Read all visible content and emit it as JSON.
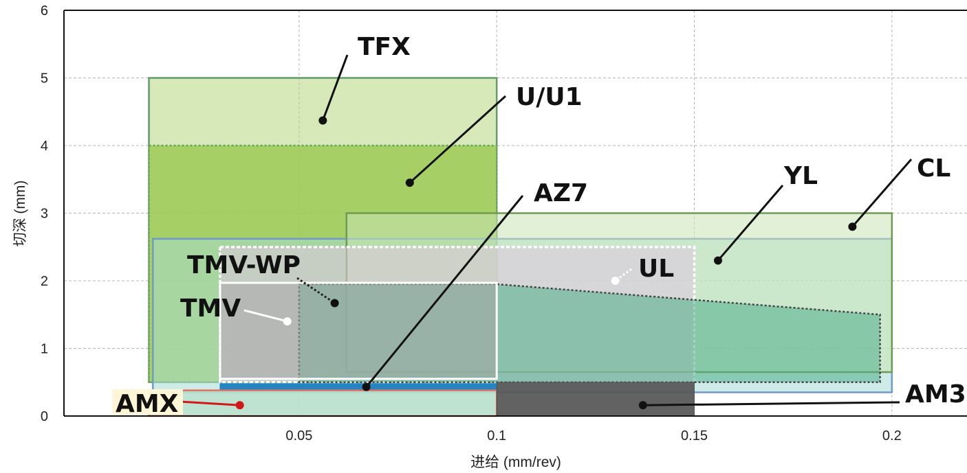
{
  "chart_data": {
    "type": "area",
    "xlabel": "进给 (mm/rev)",
    "ylabel": "切深 (mm)",
    "xlim": [
      -0.0095,
      0.219
    ],
    "ylim": [
      0,
      6
    ],
    "x_ticks": [
      {
        "value": 0.05,
        "label": "0.05"
      },
      {
        "value": 0.1,
        "label": "0.1"
      },
      {
        "value": 0.15,
        "label": "0.15"
      },
      {
        "value": 0.2,
        "label": "0.2"
      }
    ],
    "y_ticks": [
      {
        "value": 0,
        "label": "0"
      },
      {
        "value": 1,
        "label": "1"
      },
      {
        "value": 2,
        "label": "2"
      },
      {
        "value": 3,
        "label": "3"
      },
      {
        "value": 4,
        "label": "4"
      },
      {
        "value": 5,
        "label": "5"
      },
      {
        "value": 6,
        "label": "6"
      }
    ],
    "grid": true,
    "series": [
      {
        "name": "TFX",
        "feed": [
          0.012,
          0.1
        ],
        "depth": [
          0.5,
          5.0
        ],
        "fill": "#b7d67f",
        "stroke": "#5f9c6a"
      },
      {
        "name": "U/U1",
        "feed": [
          0.012,
          0.1
        ],
        "depth": [
          0.5,
          4.0
        ],
        "fill": "#96c84a",
        "stroke": "#6aa061"
      },
      {
        "name": "YL",
        "feed": [
          0.013,
          0.2
        ],
        "depth": [
          0.35,
          2.62
        ],
        "fill": "#a8dad4",
        "stroke": "#6f9bc9"
      },
      {
        "name": "CL",
        "feed": [
          0.062,
          0.2
        ],
        "depth": [
          0.65,
          3.0
        ],
        "fill": "#c9e3b6",
        "stroke": "#6f9a52"
      },
      {
        "name": "UL",
        "feed_depth_polygon": [
          [
            0.03,
            2.5
          ],
          [
            0.15,
            2.5
          ],
          [
            0.15,
            0.5
          ],
          [
            0.03,
            0.5
          ]
        ],
        "fill": "#e0c6e0",
        "stroke": "#ffffff"
      },
      {
        "name": "TMV-WP",
        "feed_depth_polygon": [
          [
            0.05,
            1.95
          ],
          [
            0.1,
            1.95
          ],
          [
            0.197,
            1.5
          ],
          [
            0.197,
            0.5
          ],
          [
            0.05,
            0.5
          ]
        ],
        "fill": "#4fae8a",
        "stroke": "#444444"
      },
      {
        "name": "TMV",
        "feed": [
          0.03,
          0.1
        ],
        "depth": [
          0.55,
          1.97
        ],
        "fill": "#a8a8a8",
        "stroke": "#ffffff"
      },
      {
        "name": "AZ7",
        "feed": [
          0.03,
          0.1
        ],
        "depth": [
          0.38,
          0.48
        ],
        "fill": "#1a7fc0",
        "stroke": "#1a7fc0"
      },
      {
        "name": "AMX",
        "feed": [
          0.012,
          0.1
        ],
        "depth": [
          0.0,
          0.38
        ],
        "fill": "#b8e0cc",
        "stroke": "#e07060"
      },
      {
        "name": "AM3",
        "feed": [
          0.1,
          0.15
        ],
        "depth": [
          0.0,
          0.5
        ],
        "fill": "#555555",
        "stroke": "#555555"
      }
    ],
    "annotations": [
      {
        "text": "TFX",
        "point": [
          0.056,
          4.37
        ]
      },
      {
        "text": "U/U1",
        "point": [
          0.078,
          3.45
        ]
      },
      {
        "text": "AZ7",
        "point": [
          0.067,
          0.43
        ]
      },
      {
        "text": "YL",
        "point": [
          0.156,
          2.3
        ]
      },
      {
        "text": "CL",
        "point": [
          0.19,
          2.8
        ]
      },
      {
        "text": "TMV-WP",
        "point": [
          0.059,
          1.67
        ]
      },
      {
        "text": "UL",
        "point": [
          0.13,
          2.0
        ]
      },
      {
        "text": "TMV",
        "point": [
          0.047,
          1.4
        ]
      },
      {
        "text": "AMX",
        "point": [
          0.035,
          0.16
        ]
      },
      {
        "text": "AM3",
        "point": [
          0.137,
          0.16
        ]
      }
    ]
  }
}
